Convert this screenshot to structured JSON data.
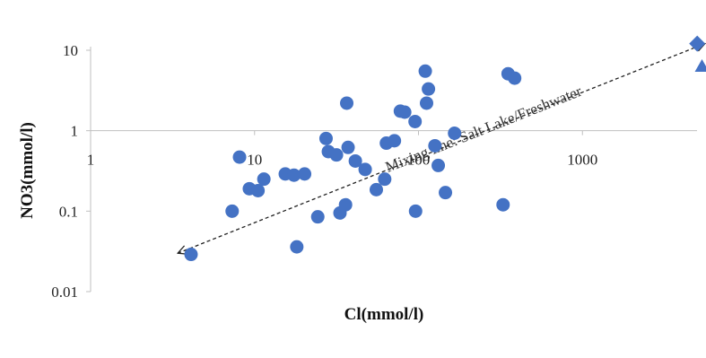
{
  "chart_data": {
    "type": "scatter",
    "title": "",
    "xlabel": "Cl(mmol/l)",
    "ylabel": "NO3(mmol/l)",
    "x_scale": "log",
    "y_scale": "log",
    "xlim": [
      1,
      5000
    ],
    "ylim": [
      0.01,
      10
    ],
    "x_ticks": [
      {
        "value": 1,
        "label": "1"
      },
      {
        "value": 10,
        "label": "10"
      },
      {
        "value": 100,
        "label": "100"
      },
      {
        "value": 1000,
        "label": "1000"
      }
    ],
    "y_ticks": [
      {
        "value": 10,
        "label": "10"
      },
      {
        "value": 1,
        "label": "1"
      },
      {
        "value": 0.1,
        "label": "0.1"
      },
      {
        "value": 0.01,
        "label": "0.01"
      }
    ],
    "x_axis_at_y": 1,
    "grid": false,
    "legend": "none",
    "series": [
      {
        "marker": "circle",
        "color": "#4472C4",
        "points": [
          [
            4.1,
            0.029
          ],
          [
            7.3,
            0.1
          ],
          [
            8.1,
            0.47
          ],
          [
            9.3,
            0.19
          ],
          [
            10.5,
            0.18
          ],
          [
            11.4,
            0.25
          ],
          [
            15.4,
            0.29
          ],
          [
            17.4,
            0.28
          ],
          [
            18.1,
            0.036
          ],
          [
            20.2,
            0.29
          ],
          [
            24.3,
            0.085
          ],
          [
            27.3,
            0.8
          ],
          [
            28.2,
            0.55
          ],
          [
            31.6,
            0.5
          ],
          [
            33.2,
            0.095
          ],
          [
            35.9,
            0.12
          ],
          [
            36.5,
            2.2
          ],
          [
            37.2,
            0.62
          ],
          [
            41.2,
            0.42
          ],
          [
            47.3,
            0.33
          ],
          [
            55.3,
            0.185
          ],
          [
            62.2,
            0.25
          ],
          [
            63.7,
            0.7
          ],
          [
            71.3,
            0.75
          ],
          [
            77.5,
            1.75
          ],
          [
            82.4,
            1.7
          ],
          [
            95.3,
            1.3
          ],
          [
            96.0,
            0.1
          ],
          [
            110.0,
            5.5
          ],
          [
            112.0,
            2.2
          ],
          [
            115.0,
            3.3
          ],
          [
            126.0,
            0.65
          ],
          [
            132.0,
            0.37
          ],
          [
            146.0,
            0.17
          ],
          [
            166.0,
            0.93
          ],
          [
            328.0,
            0.12
          ],
          [
            352.0,
            5.1
          ],
          [
            386.0,
            4.5
          ]
        ]
      },
      {
        "marker": "diamond",
        "color": "#4472C4",
        "points": [
          [
            5013,
            12.1
          ]
        ]
      },
      {
        "marker": "triangle",
        "color": "#4472C4",
        "points": [
          [
            5360,
            6.3
          ]
        ]
      }
    ],
    "annotations": [
      {
        "text": "Mixing line: Salt Lake/Freshwater",
        "type": "double-arrow-dashed",
        "from": [
          3.4,
          0.03
        ],
        "to": [
          5590,
          12.1
        ]
      }
    ]
  }
}
